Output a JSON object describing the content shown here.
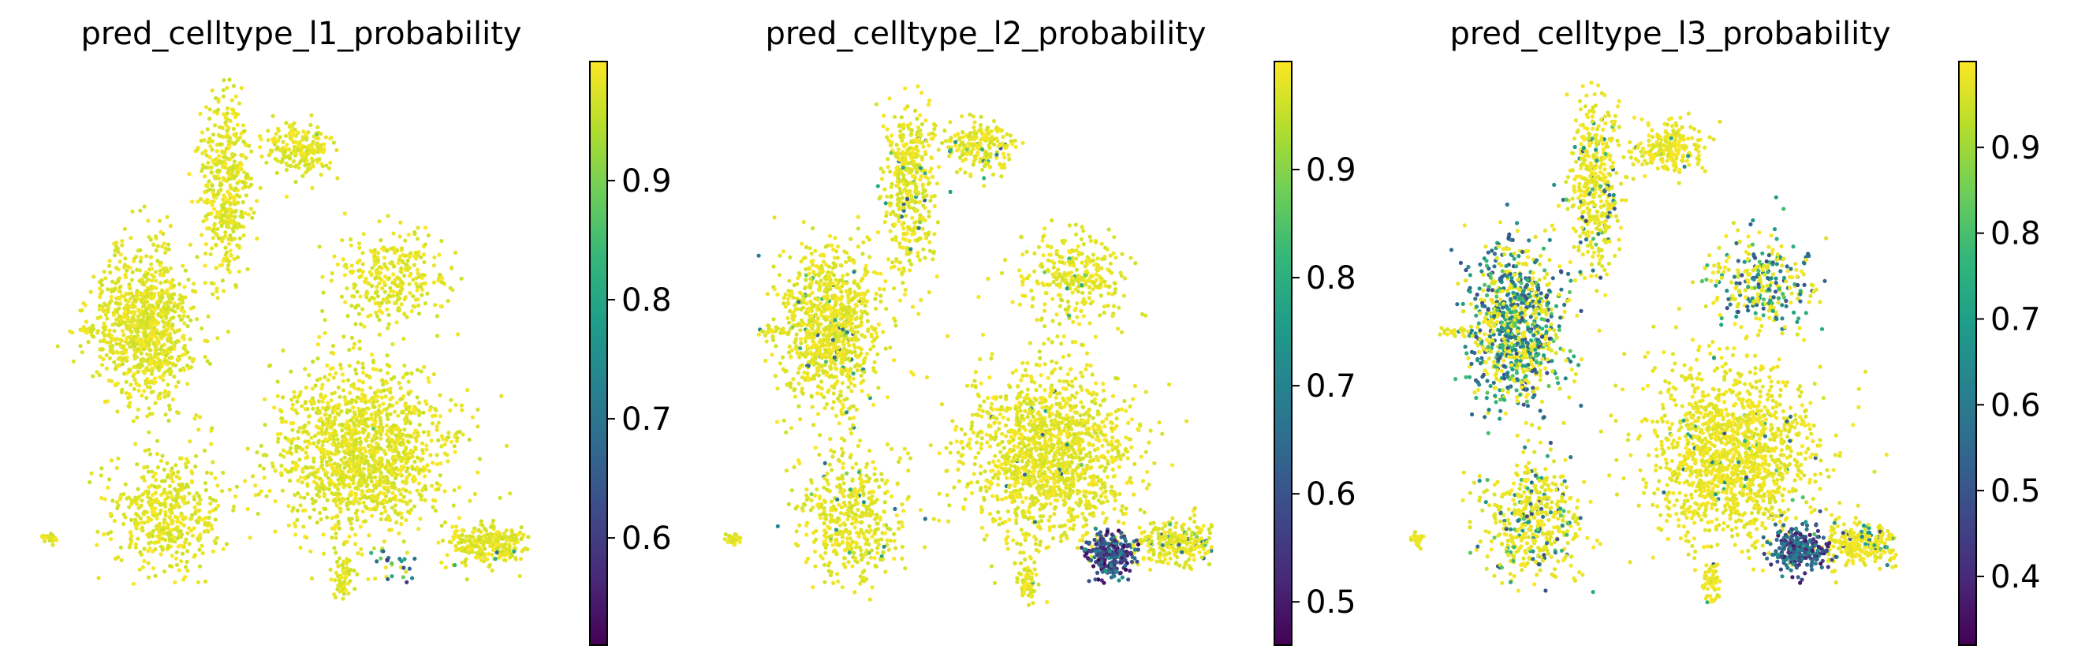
{
  "colormap": {
    "name": "viridis",
    "stops": [
      "#440154",
      "#482878",
      "#3e4989",
      "#31688e",
      "#26828e",
      "#1f9e89",
      "#35b779",
      "#6ece58",
      "#b5de2b",
      "#fde725"
    ]
  },
  "chart_data": [
    {
      "type": "scatter",
      "title": "pred_celltype_l1_probability",
      "xlabel": "",
      "ylabel": "",
      "grid": false,
      "colorbar": {
        "range": [
          0.51,
          1.0
        ],
        "ticks": [
          0.6,
          0.7,
          0.8,
          0.9
        ]
      },
      "clusters": [
        {
          "name": "top-left stem",
          "center": [
            0.38,
            0.2
          ],
          "spread": [
            0.05,
            0.17
          ],
          "n": 420,
          "low_frac": 0.0
        },
        {
          "name": "top arm",
          "center": [
            0.53,
            0.13
          ],
          "spread": [
            0.07,
            0.05
          ],
          "n": 200,
          "low_frac": 0.01
        },
        {
          "name": "upper-left body",
          "center": [
            0.22,
            0.47
          ],
          "spread": [
            0.1,
            0.15
          ],
          "n": 900,
          "low_frac": 0.0
        },
        {
          "name": "lower-left body",
          "center": [
            0.26,
            0.83
          ],
          "spread": [
            0.11,
            0.12
          ],
          "n": 450,
          "low_frac": 0.0
        },
        {
          "name": "small ring",
          "center": [
            0.72,
            0.38
          ],
          "spread": [
            0.11,
            0.09
          ],
          "n": 300,
          "low_frac": 0.0
        },
        {
          "name": "large body",
          "center": [
            0.66,
            0.71
          ],
          "spread": [
            0.17,
            0.16
          ],
          "n": 1400,
          "low_frac": 0.003
        },
        {
          "name": "tail",
          "center": [
            0.92,
            0.88
          ],
          "spread": [
            0.08,
            0.04
          ],
          "n": 260,
          "low_frac": 0.01
        },
        {
          "name": "bottom spur",
          "center": [
            0.62,
            0.95
          ],
          "spread": [
            0.02,
            0.05
          ],
          "n": 60,
          "low_frac": 0.0
        },
        {
          "name": "left speck",
          "center": [
            0.02,
            0.87
          ],
          "spread": [
            0.015,
            0.012
          ],
          "n": 25,
          "low_frac": 0.0
        },
        {
          "name": "left spur",
          "center": [
            0.1,
            0.48
          ],
          "spread": [
            0.03,
            0.01
          ],
          "n": 20,
          "low_frac": 0.0
        }
      ],
      "low_region": {
        "center": [
          0.72,
          0.92
        ],
        "spread": [
          0.05,
          0.03
        ],
        "n": 20,
        "value_range": [
          0.55,
          0.9
        ]
      }
    },
    {
      "type": "scatter",
      "title": "pred_celltype_l2_probability",
      "xlabel": "",
      "ylabel": "",
      "grid": false,
      "colorbar": {
        "range": [
          0.46,
          1.0
        ],
        "ticks": [
          0.5,
          0.6,
          0.7,
          0.8,
          0.9
        ]
      },
      "clusters": [
        {
          "name": "top-left stem",
          "center": [
            0.38,
            0.2
          ],
          "spread": [
            0.05,
            0.17
          ],
          "n": 420,
          "low_frac": 0.05
        },
        {
          "name": "top arm",
          "center": [
            0.53,
            0.13
          ],
          "spread": [
            0.07,
            0.05
          ],
          "n": 200,
          "low_frac": 0.08
        },
        {
          "name": "upper-left body",
          "center": [
            0.22,
            0.47
          ],
          "spread": [
            0.1,
            0.15
          ],
          "n": 900,
          "low_frac": 0.06
        },
        {
          "name": "lower-left body",
          "center": [
            0.26,
            0.83
          ],
          "spread": [
            0.11,
            0.12
          ],
          "n": 450,
          "low_frac": 0.05
        },
        {
          "name": "small ring",
          "center": [
            0.72,
            0.38
          ],
          "spread": [
            0.11,
            0.09
          ],
          "n": 300,
          "low_frac": 0.02
        },
        {
          "name": "large body",
          "center": [
            0.66,
            0.71
          ],
          "spread": [
            0.17,
            0.16
          ],
          "n": 1400,
          "low_frac": 0.01
        },
        {
          "name": "tail",
          "center": [
            0.92,
            0.88
          ],
          "spread": [
            0.08,
            0.04
          ],
          "n": 260,
          "low_frac": 0.08
        },
        {
          "name": "bottom spur",
          "center": [
            0.62,
            0.95
          ],
          "spread": [
            0.02,
            0.05
          ],
          "n": 60,
          "low_frac": 0.02
        },
        {
          "name": "left speck",
          "center": [
            0.02,
            0.87
          ],
          "spread": [
            0.015,
            0.012
          ],
          "n": 25,
          "low_frac": 0.0
        },
        {
          "name": "left spur",
          "center": [
            0.1,
            0.48
          ],
          "spread": [
            0.03,
            0.01
          ],
          "n": 20,
          "low_frac": 0.0
        }
      ],
      "low_region": {
        "center": [
          0.79,
          0.9
        ],
        "spread": [
          0.045,
          0.04
        ],
        "n": 260,
        "value_range": [
          0.46,
          0.75
        ]
      }
    },
    {
      "type": "scatter",
      "title": "pred_celltype_l3_probability",
      "xlabel": "",
      "ylabel": "",
      "grid": false,
      "colorbar": {
        "range": [
          0.32,
          1.0
        ],
        "ticks": [
          0.4,
          0.5,
          0.6,
          0.7,
          0.8,
          0.9
        ]
      },
      "clusters": [
        {
          "name": "top-left stem",
          "center": [
            0.38,
            0.2
          ],
          "spread": [
            0.05,
            0.17
          ],
          "n": 420,
          "low_frac": 0.12
        },
        {
          "name": "top arm",
          "center": [
            0.53,
            0.13
          ],
          "spread": [
            0.07,
            0.05
          ],
          "n": 200,
          "low_frac": 0.05
        },
        {
          "name": "upper-left body",
          "center": [
            0.22,
            0.47
          ],
          "spread": [
            0.1,
            0.15
          ],
          "n": 900,
          "low_frac": 0.55
        },
        {
          "name": "lower-left body",
          "center": [
            0.26,
            0.83
          ],
          "spread": [
            0.11,
            0.12
          ],
          "n": 450,
          "low_frac": 0.2
        },
        {
          "name": "small ring",
          "center": [
            0.72,
            0.38
          ],
          "spread": [
            0.11,
            0.09
          ],
          "n": 300,
          "low_frac": 0.5
        },
        {
          "name": "large body",
          "center": [
            0.66,
            0.71
          ],
          "spread": [
            0.17,
            0.16
          ],
          "n": 1400,
          "low_frac": 0.03
        },
        {
          "name": "tail",
          "center": [
            0.92,
            0.88
          ],
          "spread": [
            0.08,
            0.04
          ],
          "n": 260,
          "low_frac": 0.15
        },
        {
          "name": "bottom spur",
          "center": [
            0.62,
            0.95
          ],
          "spread": [
            0.02,
            0.05
          ],
          "n": 60,
          "low_frac": 0.05
        },
        {
          "name": "left speck",
          "center": [
            0.02,
            0.87
          ],
          "spread": [
            0.015,
            0.012
          ],
          "n": 25,
          "low_frac": 0.0
        },
        {
          "name": "left spur",
          "center": [
            0.1,
            0.48
          ],
          "spread": [
            0.03,
            0.01
          ],
          "n": 20,
          "low_frac": 0.0
        }
      ],
      "low_region": {
        "center": [
          0.8,
          0.89
        ],
        "spread": [
          0.05,
          0.04
        ],
        "n": 280,
        "value_range": [
          0.35,
          0.7
        ]
      }
    }
  ]
}
